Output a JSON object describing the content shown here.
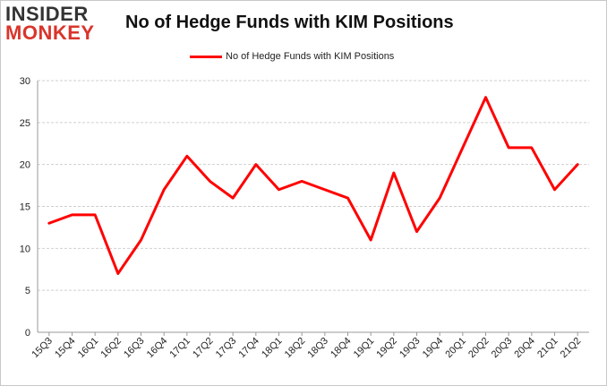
{
  "logo": {
    "line1": "INSIDER",
    "line2": "MONKEY"
  },
  "chart_data": {
    "type": "line",
    "title": "No of Hedge Funds with KIM Positions",
    "categories": [
      "15Q3",
      "15Q4",
      "16Q1",
      "16Q2",
      "16Q3",
      "16Q4",
      "17Q1",
      "17Q2",
      "17Q3",
      "17Q4",
      "18Q1",
      "18Q2",
      "18Q3",
      "18Q4",
      "19Q1",
      "19Q2",
      "19Q3",
      "19Q4",
      "20Q1",
      "20Q2",
      "20Q3",
      "20Q4",
      "21Q1",
      "21Q2"
    ],
    "series": [
      {
        "name": "No of Hedge Funds with KIM Positions",
        "values": [
          13,
          14,
          14,
          7,
          11,
          17,
          21,
          18,
          16,
          20,
          17,
          18,
          17,
          16,
          11,
          19,
          12,
          16,
          22,
          28,
          22,
          22,
          17,
          20
        ]
      }
    ],
    "ylim": [
      0,
      30
    ],
    "yticks": [
      0,
      5,
      10,
      15,
      20,
      25,
      30
    ],
    "grid": true,
    "legend_position": "top-center",
    "line_color": "#ff0000"
  }
}
